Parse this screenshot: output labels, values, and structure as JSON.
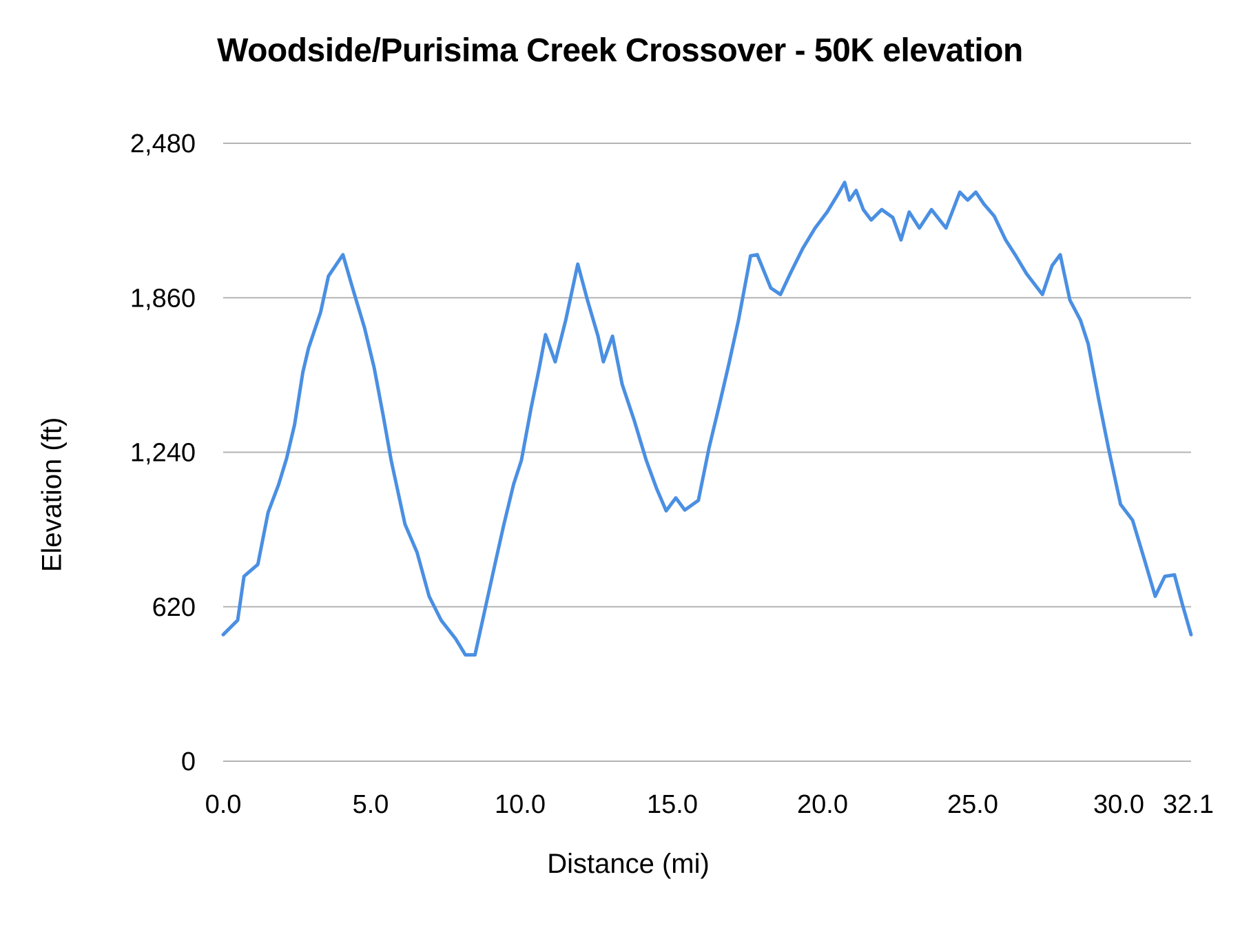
{
  "chart_data": {
    "type": "line",
    "title": "Woodside/Purisima Creek Crossover - 50K elevation",
    "xlabel": "Distance (mi)",
    "ylabel": "Elevation (ft)",
    "x_tick_labels": [
      "0.0",
      "5.0",
      "10.0",
      "15.0",
      "20.0",
      "25.0",
      "30.0",
      "32.1"
    ],
    "y_tick_labels": [
      "0",
      "620",
      "1,240",
      "1,860",
      "2,480"
    ],
    "y_ticks": [
      0,
      620,
      1240,
      1860,
      2480
    ],
    "xlim": [
      0,
      32.1
    ],
    "ylim": [
      0,
      2480
    ],
    "grid": "horizontal",
    "legend": "none",
    "series": [
      {
        "name": "Elevation",
        "color": "#4a8fe2",
        "x": [
          0.0,
          0.48,
          0.69,
          1.15,
          1.49,
          1.84,
          2.1,
          2.37,
          2.64,
          2.83,
          3.23,
          3.49,
          3.97,
          4.29,
          4.69,
          5.01,
          5.31,
          5.57,
          6.03,
          6.43,
          6.83,
          7.23,
          7.71,
          8.03,
          8.35,
          8.69,
          9.04,
          9.31,
          9.63,
          9.89,
          10.21,
          10.48,
          10.69,
          11.01,
          11.36,
          11.76,
          12.08,
          12.43,
          12.61,
          12.91,
          13.23,
          13.63,
          14.03,
          14.37,
          14.69,
          15.01,
          15.31,
          15.76,
          16.11,
          16.43,
          16.77,
          17.09,
          17.49,
          17.71,
          18.16,
          18.48,
          18.83,
          19.23,
          19.63,
          20.03,
          20.43,
          20.61,
          20.77,
          20.99,
          21.23,
          21.49,
          21.84,
          22.21,
          22.48,
          22.75,
          23.09,
          23.49,
          23.97,
          24.43,
          24.69,
          24.96,
          25.23,
          25.57,
          25.95,
          26.29,
          26.64,
          27.17,
          27.49,
          27.76,
          28.08,
          28.43,
          28.69,
          29.04,
          29.36,
          29.76,
          30.16,
          30.56,
          30.91,
          31.23,
          31.55,
          31.81,
          32.1
        ],
        "values": [
          508,
          566,
          742,
          790,
          999,
          1111,
          1214,
          1352,
          1561,
          1658,
          1802,
          1947,
          2033,
          1899,
          1738,
          1577,
          1385,
          1208,
          951,
          838,
          662,
          565,
          491,
          427,
          427,
          614,
          806,
          951,
          1111,
          1208,
          1417,
          1577,
          1712,
          1603,
          1770,
          1995,
          1851,
          1706,
          1603,
          1706,
          1513,
          1368,
          1208,
          1095,
          1005,
          1057,
          1008,
          1047,
          1256,
          1417,
          1594,
          1770,
          2028,
          2033,
          1899,
          1873,
          1963,
          2060,
          2140,
          2204,
          2284,
          2323,
          2252,
          2291,
          2214,
          2172,
          2214,
          2182,
          2092,
          2204,
          2140,
          2214,
          2140,
          2284,
          2252,
          2284,
          2236,
          2188,
          2092,
          2028,
          1957,
          1873,
          1989,
          2033,
          1851,
          1770,
          1674,
          1449,
          1256,
          1031,
          967,
          806,
          662,
          742,
          748,
          630,
          508
        ]
      }
    ]
  },
  "style": {
    "line_color": "#4a8fe2",
    "grid_color": "#b3b3b3",
    "text_color": "#000000"
  }
}
